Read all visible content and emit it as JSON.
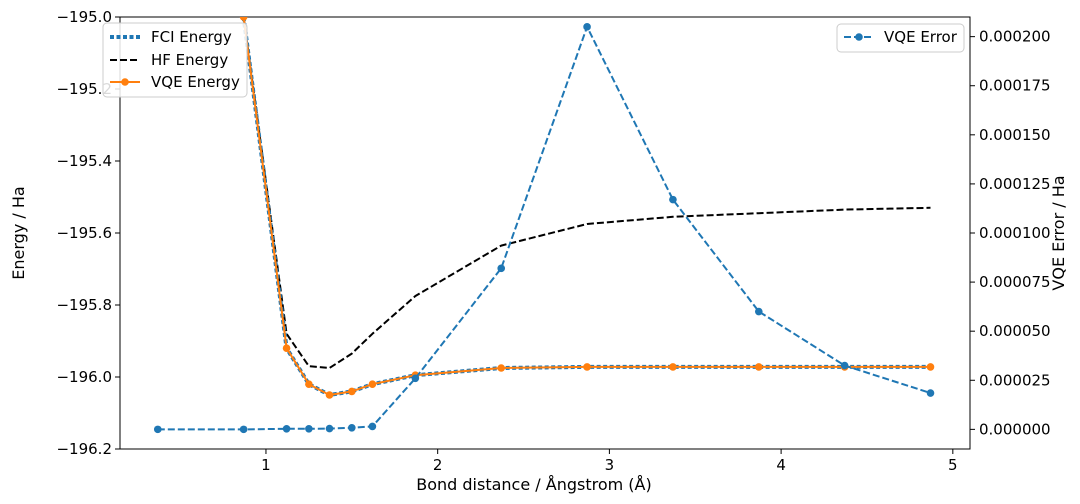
{
  "chart_data": {
    "type": "line",
    "xlabel": "Bond distance / Ångstrom (Å)",
    "ylabel": "Energy / Ha",
    "y2label": "VQE Error / Ha",
    "xlim": [
      0.15,
      5.1
    ],
    "ylim": [
      -196.2,
      -195.0
    ],
    "y2lim": [
      -1e-05,
      0.00021
    ],
    "x_ticks": [
      "1",
      "2",
      "3",
      "4",
      "5"
    ],
    "y_ticks": [
      "−195.0",
      "−195.2",
      "−195.4",
      "−195.6",
      "−195.8",
      "−196.0",
      "−196.2"
    ],
    "y2_ticks": [
      "0.000200",
      "0.000175",
      "0.000150",
      "0.000125",
      "0.000100",
      "0.000075",
      "0.000050",
      "0.000025",
      "0.000000"
    ],
    "grid": false,
    "legend_left": {
      "placement": "top-left",
      "entries": [
        "FCI Energy",
        "HF Energy",
        "VQE Energy"
      ]
    },
    "legend_right": {
      "placement": "top-right",
      "entries": [
        "VQE Error"
      ]
    },
    "colors": {
      "fci": "#1f77b4",
      "hf": "#000000",
      "vqe": "#ff7f0e",
      "error": "#1f77b4"
    },
    "series": [
      {
        "name": "FCI Energy",
        "axis": "left",
        "style": "dotted",
        "x": [
          0.87,
          1.12,
          1.25,
          1.37,
          1.5,
          1.62,
          1.87,
          2.37,
          2.87,
          3.37,
          3.87,
          4.37,
          4.87
        ],
        "y": [
          -195.0,
          -195.92,
          -196.02,
          -196.05,
          -196.04,
          -196.02,
          -195.995,
          -195.975,
          -195.972,
          -195.972,
          -195.972,
          -195.972,
          -195.972
        ]
      },
      {
        "name": "HF Energy",
        "axis": "left",
        "style": "dashed",
        "x": [
          0.87,
          1.12,
          1.25,
          1.37,
          1.5,
          1.62,
          1.87,
          2.37,
          2.87,
          3.37,
          3.87,
          4.37,
          4.87
        ],
        "y": [
          -195.0,
          -195.88,
          -195.97,
          -195.975,
          -195.935,
          -195.88,
          -195.775,
          -195.635,
          -195.575,
          -195.555,
          -195.545,
          -195.535,
          -195.53
        ]
      },
      {
        "name": "VQE Energy",
        "axis": "left",
        "style": "solid-marker",
        "x": [
          0.87,
          1.12,
          1.25,
          1.37,
          1.5,
          1.62,
          1.87,
          2.37,
          2.87,
          3.37,
          3.87,
          4.37,
          4.87
        ],
        "y": [
          -195.0,
          -195.92,
          -196.02,
          -196.05,
          -196.04,
          -196.02,
          -195.995,
          -195.975,
          -195.972,
          -195.972,
          -195.972,
          -195.972,
          -195.972
        ]
      },
      {
        "name": "VQE Error",
        "axis": "right",
        "style": "dashed-marker",
        "x": [
          0.37,
          0.87,
          1.12,
          1.25,
          1.37,
          1.5,
          1.62,
          1.87,
          2.37,
          2.87,
          3.37,
          3.87,
          4.37,
          4.87
        ],
        "y": [
          0.0,
          0.0,
          3e-07,
          3e-07,
          4e-07,
          8e-07,
          1.5e-06,
          2.6e-05,
          8.2e-05,
          0.000205,
          0.000117,
          6e-05,
          3.25e-05,
          1.85e-05
        ]
      }
    ]
  }
}
